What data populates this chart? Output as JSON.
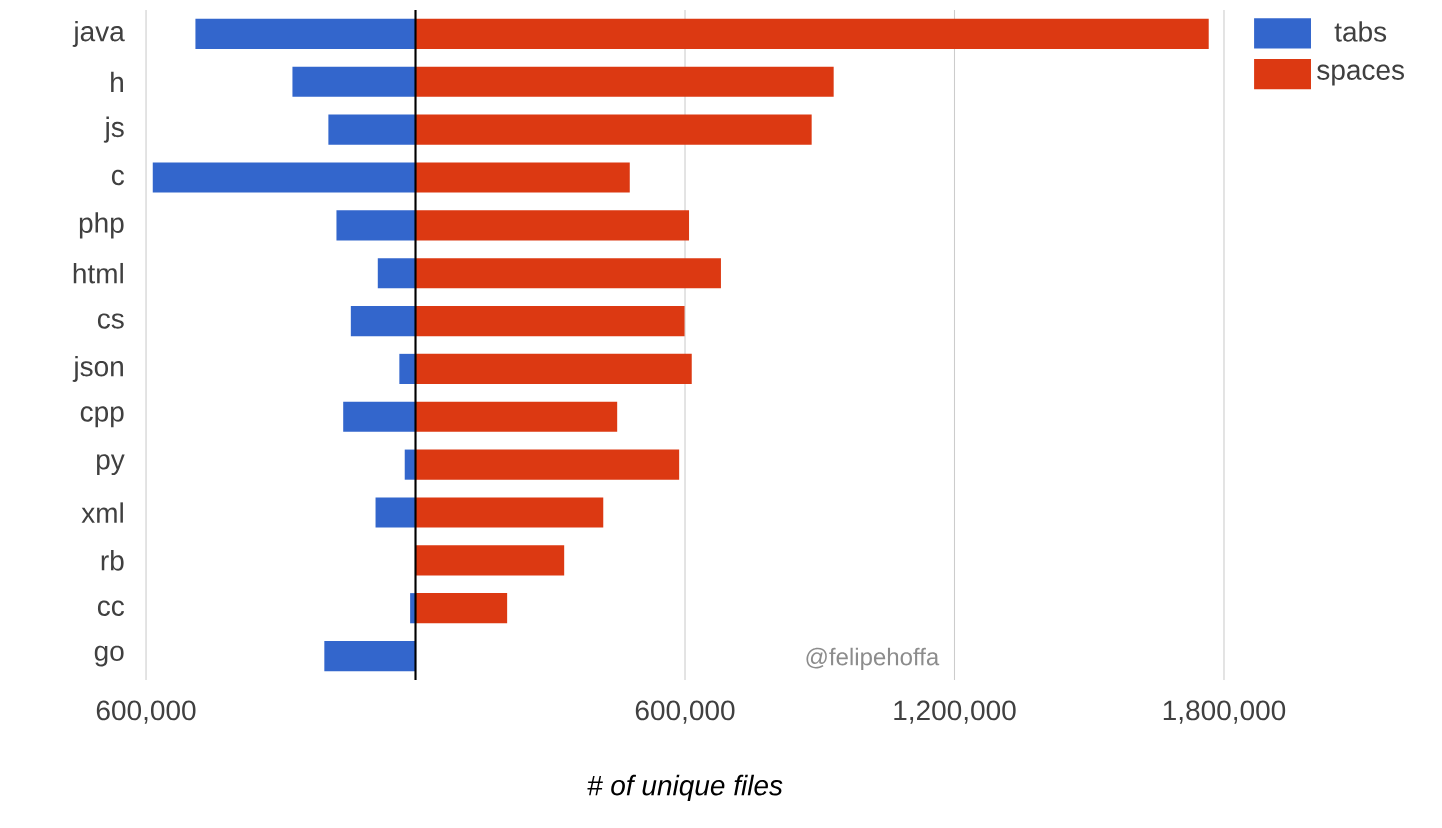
{
  "chart_data": {
    "type": "bar",
    "orientation": "horizontal",
    "stacked": true,
    "xlabel": "# of unique files",
    "categories": [
      "java",
      "h",
      "js",
      "c",
      "php",
      "html",
      "cs",
      "json",
      "cpp",
      "py",
      "xml",
      "rb",
      "cc",
      "go"
    ],
    "series": [
      {
        "name": "tabs",
        "color": "#3366cc",
        "values": [
          -490000,
          -274000,
          -194000,
          -585000,
          -176000,
          -84000,
          -144000,
          -36000,
          -161000,
          -24000,
          -89000,
          null,
          -12000,
          -203000
        ]
      },
      {
        "name": "spaces",
        "color": "#dc3912",
        "values": [
          1766000,
          931000,
          882000,
          477000,
          609000,
          680000,
          599000,
          615000,
          449000,
          587000,
          418000,
          331000,
          204000,
          0
        ]
      }
    ],
    "xlim": [
      -600000,
      1800000
    ],
    "xticks": [
      {
        "value": -600000,
        "label": "600,000"
      },
      {
        "value": 0,
        "label": null
      },
      {
        "value": 600000,
        "label": "600,000"
      },
      {
        "value": 1200000,
        "label": "1,200,000"
      },
      {
        "value": 1800000,
        "label": "1,800,000"
      }
    ],
    "grid": "x",
    "legend": "top right",
    "annotations": [
      "@felipehoffa"
    ]
  }
}
